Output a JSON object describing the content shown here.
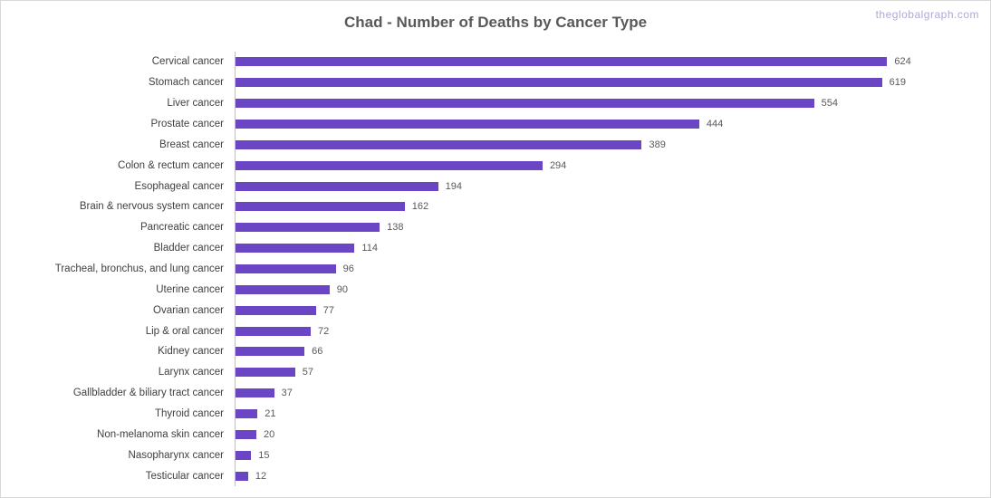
{
  "header": {
    "title": "Chad - Number of Deaths by Cancer Type",
    "watermark": "theglobalgraph.com"
  },
  "colors": {
    "bar": "#6a46c4",
    "title_text": "#595959",
    "category_text": "#404040",
    "value_text": "#595959",
    "watermark_text": "#b3a6d9",
    "frame_border": "#d9d9d9",
    "axis_line": "#bfbfbf"
  },
  "chart_data": {
    "type": "bar",
    "orientation": "horizontal",
    "title": "Chad - Number of Deaths by Cancer Type",
    "xlabel": "",
    "ylabel": "",
    "xlim": [
      0,
      700
    ],
    "grid": false,
    "legend": false,
    "bar_color": "#6a46c4",
    "categories": [
      "Cervical cancer",
      "Stomach cancer",
      "Liver cancer",
      "Prostate cancer",
      "Breast cancer",
      "Colon & rectum cancer",
      "Esophageal cancer",
      "Brain & nervous system cancer",
      "Pancreatic cancer",
      "Bladder cancer",
      "Tracheal, bronchus, and lung cancer",
      "Uterine cancer",
      "Ovarian cancer",
      "Lip & oral cancer",
      "Kidney cancer",
      "Larynx cancer",
      "Gallbladder & biliary tract cancer",
      "Thyroid cancer",
      "Non-melanoma skin cancer",
      "Nasopharynx cancer",
      "Testicular cancer"
    ],
    "values": [
      624,
      619,
      554,
      444,
      389,
      294,
      194,
      162,
      138,
      114,
      96,
      90,
      77,
      72,
      66,
      57,
      37,
      21,
      20,
      15,
      12
    ]
  }
}
